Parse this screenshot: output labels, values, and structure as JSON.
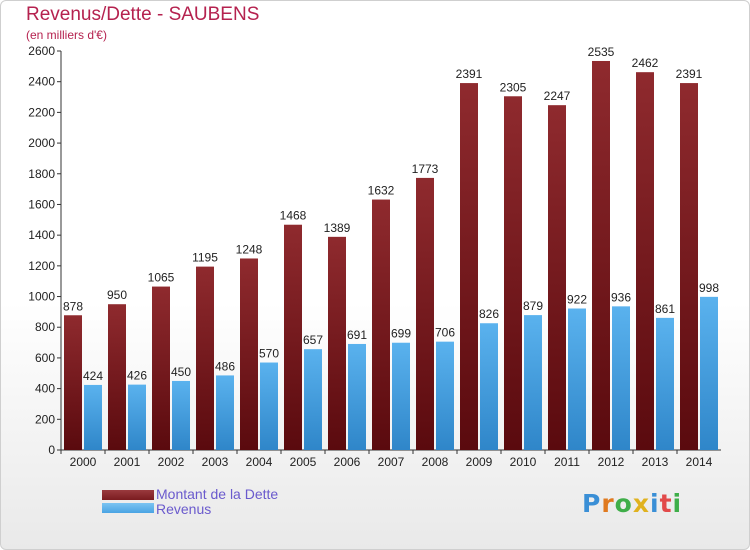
{
  "chart_data": {
    "type": "bar",
    "title": "Revenus/Dette - SAUBENS",
    "subtitle": "(en milliers d'€)",
    "categories": [
      "2000",
      "2001",
      "2002",
      "2003",
      "2004",
      "2005",
      "2006",
      "2007",
      "2008",
      "2009",
      "2010",
      "2011",
      "2012",
      "2013",
      "2014"
    ],
    "series": [
      {
        "name": "Montant de la Dette",
        "color": "#7a1b1f",
        "values": [
          878,
          950,
          1065,
          1195,
          1248,
          1468,
          1389,
          1632,
          1773,
          2391,
          2305,
          2247,
          2535,
          2462,
          2391
        ]
      },
      {
        "name": "Revenus",
        "color": "#4aa3e3",
        "values": [
          424,
          426,
          450,
          486,
          570,
          657,
          691,
          699,
          706,
          826,
          879,
          922,
          936,
          861,
          998
        ]
      }
    ],
    "ylim": [
      0,
      2600
    ],
    "yticks": [
      0,
      200,
      400,
      600,
      800,
      1000,
      1200,
      1400,
      1600,
      1800,
      2000,
      2200,
      2400,
      2600
    ],
    "grid": false,
    "legend_position": "bottom-left"
  },
  "legend": {
    "debt_label": "Montant de la Dette",
    "revenue_label": "Revenus",
    "text_color": "#6a5acd"
  },
  "logo": {
    "text": "Proxiti",
    "letters": [
      "P",
      "r",
      "o",
      "x",
      "i",
      "t",
      "i"
    ],
    "colors": [
      "#3a8fd6",
      "#e07a1f",
      "#3fae49",
      "#e0b21f",
      "#3a8fd6",
      "#e24a4a",
      "#3fae49"
    ]
  }
}
